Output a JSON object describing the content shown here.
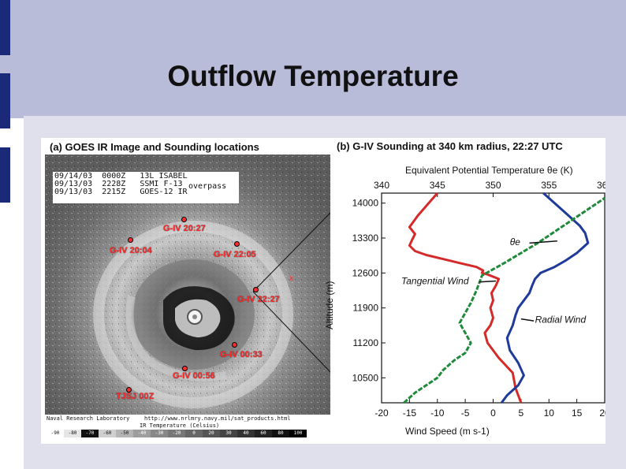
{
  "slide": {
    "title": "Outflow Temperature"
  },
  "colors": {
    "header_bg": "#b8bcd9",
    "panel_bg": "#dfe0ec",
    "accent_bars": "#1b2a78",
    "location_marker": "#ff2d2d"
  },
  "panel_a": {
    "title": "(a) GOES IR Image and Sounding locations",
    "overlay_lines": [
      "09/14/03  0000Z   13L ISABEL",
      "09/13/03  2228Z   SSMI F-13",
      "09/13/03  2215Z   GOES-12 IR"
    ],
    "overpass_label": "overpass",
    "footer_credit": "Naval Research Laboratory",
    "footer_product": "http://www.nrlmry.navy.mil/sat_products.html",
    "colorbar_label": "IR Temperature (Celsius)",
    "colorbar_ticks": [
      "-90",
      "-80",
      "-70",
      "-60",
      "-50",
      "-40",
      "-30",
      "-20",
      "0",
      "20",
      "30",
      "40",
      "60",
      "80",
      "100"
    ],
    "locations": [
      {
        "label": "G-IV 20:27"
      },
      {
        "label": "G-IV 20:04"
      },
      {
        "label": "G-IV 22:05"
      },
      {
        "label": "G-IV 22:27"
      },
      {
        "label": "G-IV 00:33"
      },
      {
        "label": "G-IV 00:56"
      },
      {
        "label": "TJSJ 00Z"
      }
    ],
    "x_marker": "x"
  },
  "panel_b": {
    "title": "(b) G-IV Sounding at 340 km radius, 22:27 UTC",
    "annotations": {
      "theta_e": "θe",
      "tangential": "Tangential Wind",
      "radial": "Radial Wind"
    }
  },
  "chart_data": {
    "type": "line",
    "title": "(b) G-IV Sounding at 340 km radius, 22:27 UTC",
    "xlabel": "Wind Speed (m s-1)",
    "x2label": "Equivalent Potential Temperature θe (K)",
    "ylabel": "Altitude (m)",
    "xlim": [
      -20,
      20
    ],
    "x2lim": [
      340,
      360
    ],
    "ylim": [
      10000,
      14200
    ],
    "xticks": [
      -20,
      -15,
      -10,
      -5,
      0,
      5,
      10,
      15,
      20
    ],
    "x2ticks": [
      340,
      345,
      350,
      355,
      360
    ],
    "yticks": [
      10500,
      11200,
      11900,
      12600,
      13300,
      14000
    ],
    "grid": false,
    "series": [
      {
        "name": "Tangential Wind",
        "color": "#d42a2a",
        "x": [
          5,
          4,
          3.5,
          1,
          -1,
          -1.5,
          -0.5,
          0,
          -0.5,
          0,
          -0.3,
          0.5,
          1,
          -1,
          -2,
          -1.8,
          -3,
          -6,
          -9,
          -12,
          -14,
          -15,
          -14.5,
          -14,
          -15,
          -13.5,
          -10
        ],
        "y": [
          10000,
          10300,
          10600,
          10900,
          11200,
          11400,
          11550,
          11700,
          11900,
          12050,
          12200,
          12350,
          12480,
          12570,
          12600,
          12650,
          12720,
          12800,
          12880,
          12960,
          13040,
          13150,
          13270,
          13380,
          13520,
          13750,
          14200
        ]
      },
      {
        "name": "Radial Wind",
        "color": "#1e3a9a",
        "x": [
          1.5,
          2.5,
          4.5,
          5.5,
          4.5,
          3,
          2.5,
          3.5,
          4,
          4.5,
          5.5,
          6.5,
          7,
          7.5,
          8.5,
          11,
          13,
          15,
          17,
          16.5,
          15.5,
          13,
          9
        ],
        "y": [
          10000,
          10150,
          10350,
          10550,
          10800,
          11050,
          11300,
          11550,
          11750,
          11900,
          12050,
          12200,
          12350,
          12480,
          12600,
          12720,
          12850,
          13000,
          13200,
          13400,
          13550,
          13800,
          14200
        ]
      },
      {
        "name": "Theta-e",
        "axis": "top",
        "color": "#1f8a3a",
        "x": [
          342,
          343,
          344,
          345,
          345.5,
          346.5,
          347.5,
          348,
          347.5,
          347,
          347.5,
          348,
          348.5,
          349,
          351,
          354,
          357,
          360
        ],
        "y": [
          10000,
          10200,
          10350,
          10500,
          10650,
          10850,
          11000,
          11200,
          11400,
          11600,
          11800,
          12000,
          12250,
          12550,
          12800,
          13200,
          13650,
          14100
        ]
      }
    ]
  }
}
